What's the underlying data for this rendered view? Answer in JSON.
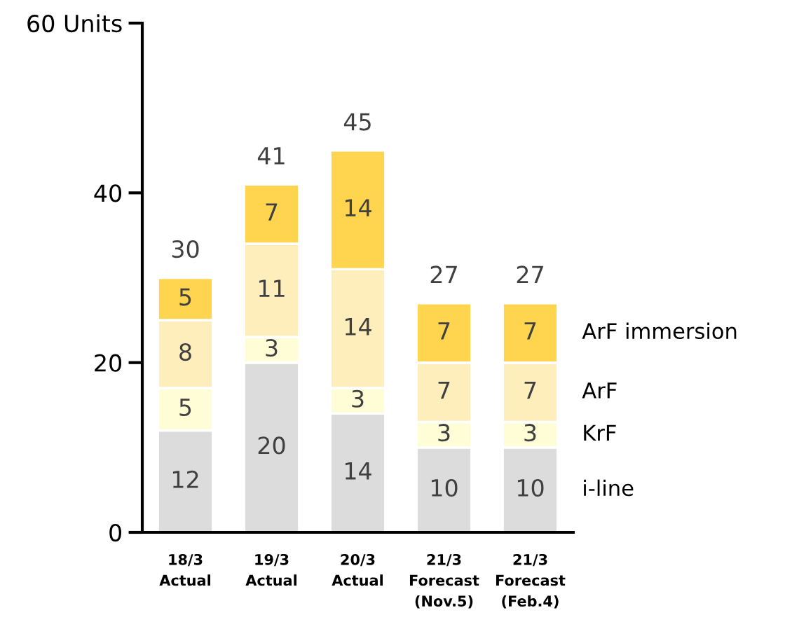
{
  "chart_data": {
    "type": "bar",
    "stacked": true,
    "data_labels": true,
    "grid": false,
    "legend": false,
    "categories": [
      "18/3\nActual",
      "19/3\nActual",
      "20/3\nActual",
      "21/3\nForecast\n(Nov.5)",
      "21/3\nForecast\n(Feb.4)"
    ],
    "series": [
      {
        "name": "i-line",
        "color": "#dcdcdc",
        "values": [
          12,
          20,
          14,
          10,
          10
        ]
      },
      {
        "name": "KrF",
        "color": "#fffdd6",
        "values": [
          5,
          3,
          3,
          3,
          3
        ]
      },
      {
        "name": "ArF",
        "color": "#feeebb",
        "values": [
          8,
          11,
          14,
          7,
          7
        ]
      },
      {
        "name": "ArF immersion",
        "color": "#ffd54f",
        "values": [
          5,
          7,
          14,
          7,
          7
        ]
      }
    ],
    "totals": [
      "30",
      "41",
      "45",
      "27",
      "27"
    ],
    "ylim": [
      0,
      60
    ],
    "yticks": [
      0,
      20,
      40,
      {
        "value": 60,
        "label": "60 Units"
      }
    ]
  }
}
